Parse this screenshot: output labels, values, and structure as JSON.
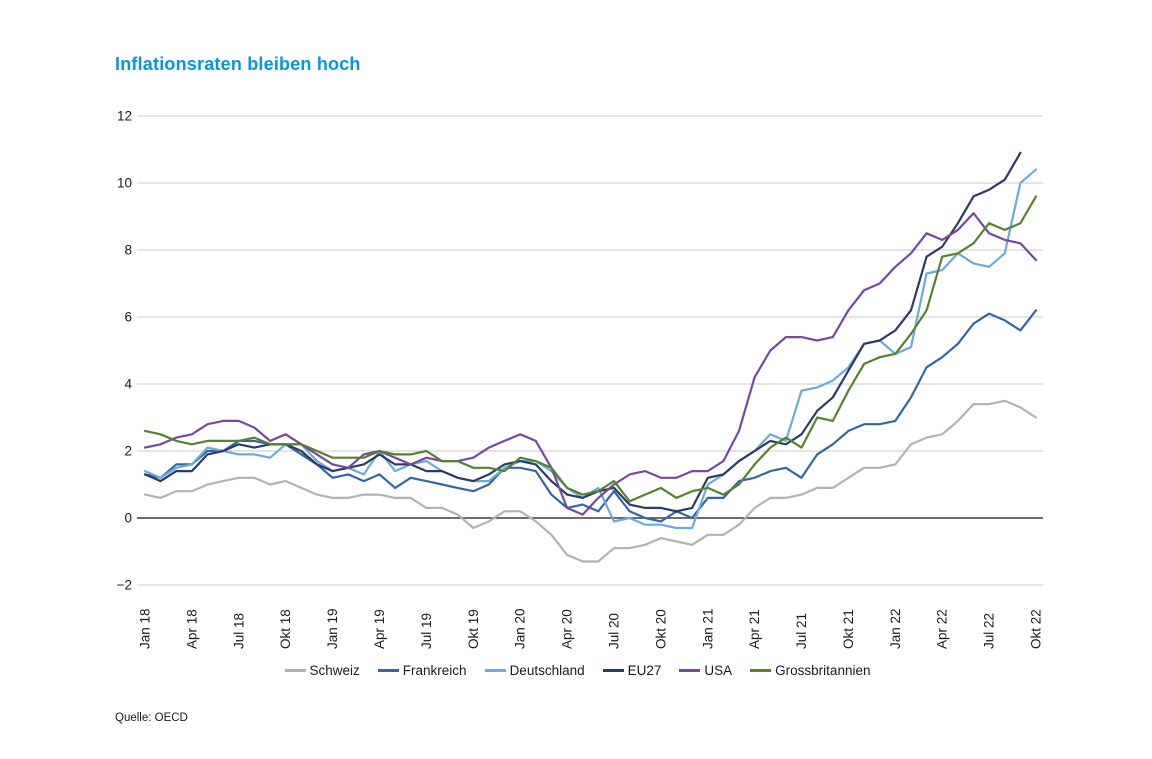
{
  "page": {
    "title": "Inflationsraten bleiben hoch",
    "source": "Quelle: OECD"
  },
  "chart_data": {
    "type": "line",
    "title": "Inflationsraten bleiben hoch",
    "source": "Quelle: OECD",
    "grid": "horizontal",
    "legend_position": "bottom",
    "ylim": [
      -2,
      12
    ],
    "y_ticks": [
      -2,
      0,
      2,
      4,
      6,
      8,
      10,
      12
    ],
    "months_total": 58,
    "x_start": "Jan 2018",
    "x_end": "Okt 2022",
    "x_tick_every_n_months": 3,
    "x_tick_labels": [
      "Jan 18",
      "Apr 18",
      "Jul 18",
      "Okt 18",
      "Jan 19",
      "Apr 19",
      "Jul 19",
      "Okt 19",
      "Jan 20",
      "Apr 20",
      "Jul 20",
      "Okt 20",
      "Jan 21",
      "Apr 21",
      "Jul 21",
      "Okt 21",
      "Jan 22",
      "Apr 22",
      "Jul 22",
      "Okt 22"
    ],
    "title_color": "#0099db",
    "series": [
      {
        "name": "Schweiz",
        "color": "#b2b2b2",
        "values": [
          0.7,
          0.6,
          0.8,
          0.8,
          1.0,
          1.1,
          1.2,
          1.2,
          1.0,
          1.1,
          0.9,
          0.7,
          0.6,
          0.6,
          0.7,
          0.7,
          0.6,
          0.6,
          0.3,
          0.3,
          0.1,
          -0.3,
          -0.1,
          0.2,
          0.2,
          -0.1,
          -0.5,
          -1.1,
          -1.3,
          -1.3,
          -0.9,
          -0.9,
          -0.8,
          -0.6,
          -0.7,
          -0.8,
          -0.5,
          -0.5,
          -0.2,
          0.3,
          0.6,
          0.6,
          0.7,
          0.9,
          0.9,
          1.2,
          1.5,
          1.5,
          1.6,
          2.2,
          2.4,
          2.5,
          2.9,
          3.4,
          3.4,
          3.5,
          3.3,
          3.0
        ]
      },
      {
        "name": "Frankreich",
        "color": "#3566a4",
        "values": [
          1.3,
          1.2,
          1.6,
          1.6,
          2.0,
          2.0,
          2.3,
          2.3,
          2.2,
          2.2,
          1.9,
          1.6,
          1.2,
          1.3,
          1.1,
          1.3,
          0.9,
          1.2,
          1.1,
          1.0,
          0.9,
          0.8,
          1.0,
          1.5,
          1.5,
          1.4,
          0.7,
          0.3,
          0.4,
          0.2,
          0.8,
          0.2,
          0.0,
          -0.1,
          0.2,
          0.0,
          0.6,
          0.6,
          1.1,
          1.2,
          1.4,
          1.5,
          1.2,
          1.9,
          2.2,
          2.6,
          2.8,
          2.8,
          2.9,
          3.6,
          4.5,
          4.8,
          5.2,
          5.8,
          6.1,
          5.9,
          5.6,
          6.2
        ]
      },
      {
        "name": "Deutschland",
        "color": "#6babdc",
        "values": [
          1.4,
          1.2,
          1.5,
          1.6,
          2.1,
          2.0,
          1.9,
          1.9,
          1.8,
          2.2,
          2.2,
          1.7,
          1.4,
          1.5,
          1.3,
          2.0,
          1.4,
          1.6,
          1.7,
          1.4,
          1.2,
          1.1,
          1.1,
          1.5,
          1.7,
          1.7,
          1.4,
          0.9,
          0.6,
          0.9,
          -0.1,
          0.0,
          -0.2,
          -0.2,
          -0.3,
          -0.3,
          1.0,
          1.3,
          1.7,
          2.0,
          2.5,
          2.3,
          3.8,
          3.9,
          4.1,
          4.5,
          5.2,
          5.3,
          4.9,
          5.1,
          7.3,
          7.4,
          7.9,
          7.6,
          7.5,
          7.9,
          10.0,
          10.4
        ]
      },
      {
        "name": "EU27",
        "color": "#2d3a66",
        "values": [
          1.3,
          1.1,
          1.4,
          1.4,
          1.9,
          2.0,
          2.2,
          2.1,
          2.2,
          2.2,
          2.0,
          1.6,
          1.4,
          1.5,
          1.6,
          1.9,
          1.6,
          1.6,
          1.4,
          1.4,
          1.2,
          1.1,
          1.3,
          1.6,
          1.7,
          1.6,
          1.1,
          0.7,
          0.6,
          0.8,
          0.9,
          0.4,
          0.3,
          0.3,
          0.2,
          0.3,
          1.2,
          1.3,
          1.7,
          2.0,
          2.3,
          2.2,
          2.5,
          3.2,
          3.6,
          4.4,
          5.2,
          5.3,
          5.6,
          6.2,
          7.8,
          8.1,
          8.8,
          9.6,
          9.8,
          10.1,
          10.9,
          null
        ]
      },
      {
        "name": "USA",
        "color": "#75499c",
        "values": [
          2.1,
          2.2,
          2.4,
          2.5,
          2.8,
          2.9,
          2.9,
          2.7,
          2.3,
          2.5,
          2.2,
          1.9,
          1.6,
          1.5,
          1.9,
          2.0,
          1.8,
          1.6,
          1.8,
          1.7,
          1.7,
          1.8,
          2.1,
          2.3,
          2.5,
          2.3,
          1.5,
          0.3,
          0.1,
          0.6,
          1.0,
          1.3,
          1.4,
          1.2,
          1.2,
          1.4,
          1.4,
          1.7,
          2.6,
          4.2,
          5.0,
          5.4,
          5.4,
          5.3,
          5.4,
          6.2,
          6.8,
          7.0,
          7.5,
          7.9,
          8.5,
          8.3,
          8.6,
          9.1,
          8.5,
          8.3,
          8.2,
          7.7
        ]
      },
      {
        "name": "Grossbritannien",
        "color": "#56812e",
        "values": [
          2.6,
          2.5,
          2.3,
          2.2,
          2.3,
          2.3,
          2.3,
          2.4,
          2.2,
          2.2,
          2.2,
          2.0,
          1.8,
          1.8,
          1.8,
          2.0,
          1.9,
          1.9,
          2.0,
          1.7,
          1.7,
          1.5,
          1.5,
          1.4,
          1.8,
          1.7,
          1.5,
          0.9,
          0.7,
          0.8,
          1.1,
          0.5,
          0.7,
          0.9,
          0.6,
          0.8,
          0.9,
          0.7,
          1.0,
          1.6,
          2.1,
          2.4,
          2.1,
          3.0,
          2.9,
          3.8,
          4.6,
          4.8,
          4.9,
          5.5,
          6.2,
          7.8,
          7.9,
          8.2,
          8.8,
          8.6,
          8.8,
          9.6
        ]
      }
    ]
  }
}
